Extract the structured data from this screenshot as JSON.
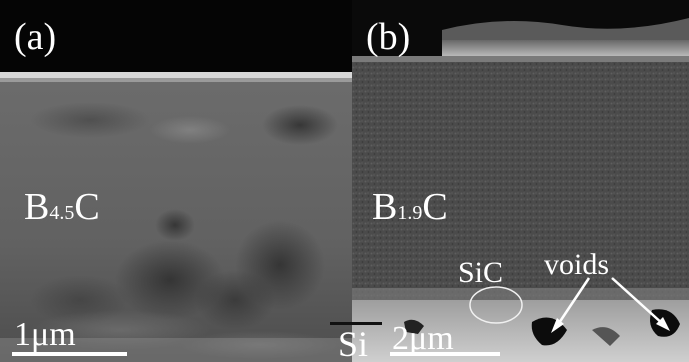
{
  "figure": {
    "panel_a": {
      "letter": "(a)",
      "material_main": "B",
      "material_sub": "4.5",
      "material_end": "C",
      "scale_label": "1μm"
    },
    "panel_b": {
      "letter": "(b)",
      "material_main": "B",
      "material_sub": "1.9",
      "material_end": "C",
      "scale_label": "2μm",
      "sic_label": "SiC",
      "voids_label": "voids",
      "si_label": "Si"
    }
  }
}
